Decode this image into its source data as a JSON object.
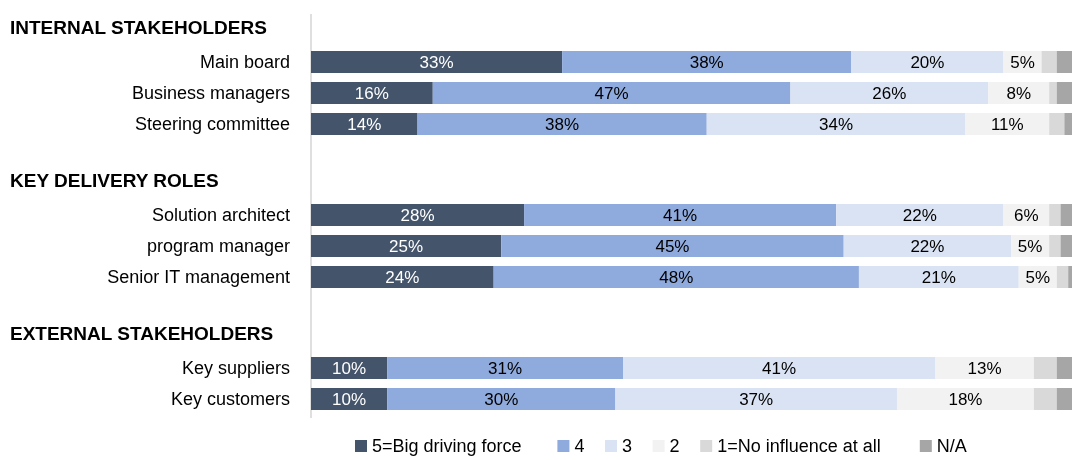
{
  "chart_data": {
    "type": "bar",
    "orientation": "horizontal",
    "stacked": true,
    "legend": "bottom",
    "annotations": [
      "INTERNAL STAKEHOLDERS",
      "KEY DELIVERY ROLES",
      "EXTERNAL STAKEHOLDERS"
    ],
    "categories": [
      null,
      "Main board",
      "Business managers",
      "Steering committee",
      null,
      "Solution architect",
      "program manager",
      "Senior IT management",
      null,
      "Key suppliers",
      "Key customers"
    ],
    "series": [
      {
        "name": "5=Big driving force",
        "color": "#44546a",
        "values": [
          null,
          33,
          16,
          14,
          null,
          28,
          25,
          24,
          null,
          10,
          10
        ],
        "value_labels": [
          null,
          "33%",
          "16%",
          "14%",
          null,
          "28%",
          "25%",
          "24%",
          null,
          "10%",
          "10%"
        ]
      },
      {
        "name": "4",
        "color": "#8faadc",
        "values": [
          null,
          38,
          47,
          38,
          null,
          41,
          45,
          48,
          null,
          31,
          30
        ],
        "value_labels": [
          null,
          "38%",
          "47%",
          "38%",
          null,
          "41%",
          "45%",
          "48%",
          null,
          "31%",
          "30%"
        ]
      },
      {
        "name": "3",
        "color": "#dae3f3",
        "values": [
          null,
          20,
          26,
          34,
          null,
          22,
          22,
          21,
          null,
          41,
          37
        ],
        "value_labels": [
          null,
          "20%",
          "26%",
          "34%",
          null,
          "22%",
          "22%",
          "21%",
          null,
          "41%",
          "37%"
        ]
      },
      {
        "name": "2",
        "color": "#f2f2f2",
        "values": [
          null,
          5,
          8,
          11,
          null,
          6,
          5,
          5,
          null,
          13,
          18
        ],
        "value_labels": [
          null,
          "5%",
          "8%",
          "11%",
          null,
          "6%",
          "5%",
          "5%",
          null,
          "13%",
          "18%"
        ]
      },
      {
        "name": "1=No influence at all",
        "color": "#d9d9d9",
        "values": [
          null,
          2,
          1,
          2,
          null,
          1.5,
          1.5,
          1.5,
          null,
          3,
          3
        ]
      },
      {
        "name": "N/A",
        "color": "#a6a6a6",
        "values": [
          null,
          2,
          2,
          1,
          null,
          1.5,
          1.5,
          0.5,
          null,
          2,
          2
        ]
      }
    ]
  }
}
